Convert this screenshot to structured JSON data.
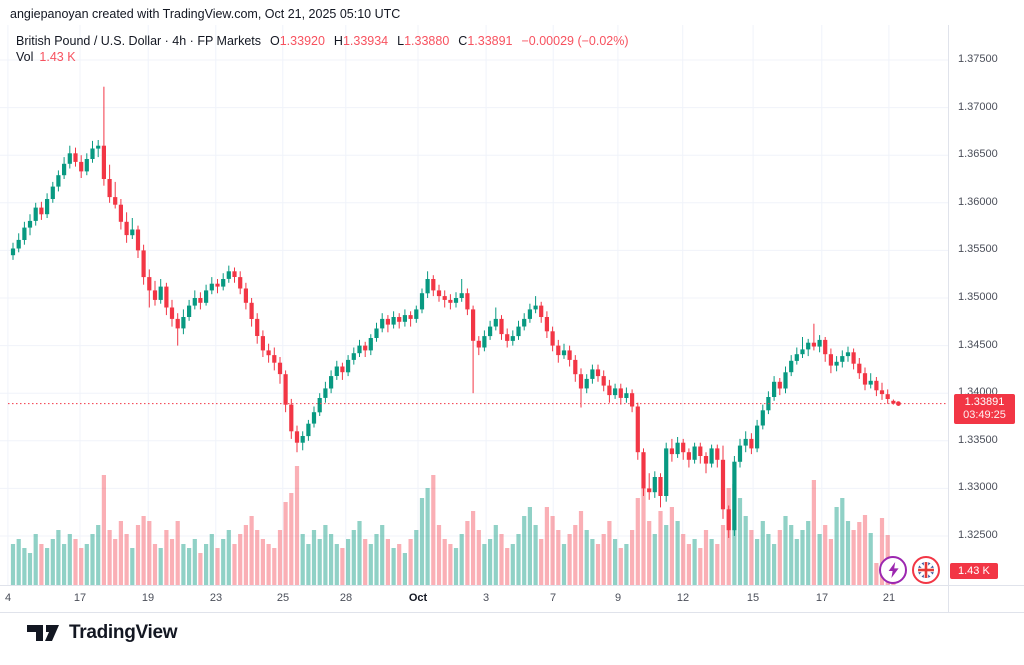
{
  "watermark": "angiepanoyan created with TradingView.com, Oct 21, 2025 05:10 UTC",
  "legend": {
    "symbol_line": "British Pound / U.S. Dollar · 4h · FP Markets",
    "ohlc": [
      {
        "k": "O",
        "v": "1.33920"
      },
      {
        "k": "H",
        "v": "1.33934"
      },
      {
        "k": "L",
        "v": "1.33880"
      },
      {
        "k": "C",
        "v": "1.33891"
      }
    ],
    "change": "−0.00029 (−0.02%)",
    "vol_label": "Vol",
    "vol_value": "1.43 K"
  },
  "price_scale": {
    "current_price": "1.33891",
    "countdown": "03:49:25",
    "current_volume": "1.43 K"
  },
  "footer": {
    "logo_text": "TradingView"
  },
  "buttons": {
    "lightning": "instant-trading",
    "flag": "gbp-currency-flag"
  },
  "colors": {
    "up": "#089981",
    "down": "#f23645",
    "vol_up": "rgba(8,153,129,0.45)",
    "vol_down": "rgba(242,54,69,0.40)",
    "grid": "#f0f3fa",
    "border": "#e0e3eb",
    "axis_text": "#4a4e59",
    "text": "#131722",
    "legend_value_red": "#f7525f",
    "tag_bg": "#f23645",
    "purple": "#9c27b0",
    "flag_blue": "#39539b",
    "flag_red": "#e53935"
  },
  "chart_data": {
    "type": "candlestick",
    "title": "British Pound / U.S. Dollar, 4h, FP Markets",
    "symbol": "GBPUSD",
    "interval": "4h",
    "provider": "FP Markets",
    "last_close": 1.33891,
    "ohlc_last": {
      "open": 1.3392,
      "high": 1.33934,
      "low": 1.3388,
      "close": 1.33891,
      "change": -0.00029,
      "change_pct": -0.02
    },
    "ylim": [
      1.3225,
      1.3775
    ],
    "grid": true,
    "y_ticks": [
      {
        "label": "1.37500",
        "value": 1.375
      },
      {
        "label": "1.37000",
        "value": 1.37
      },
      {
        "label": "1.36500",
        "value": 1.365
      },
      {
        "label": "1.36000",
        "value": 1.36
      },
      {
        "label": "1.35500",
        "value": 1.355
      },
      {
        "label": "1.35000",
        "value": 1.35
      },
      {
        "label": "1.34500",
        "value": 1.345
      },
      {
        "label": "1.34000",
        "value": 1.34
      },
      {
        "label": "1.33500",
        "value": 1.335
      },
      {
        "label": "1.33000",
        "value": 1.33
      },
      {
        "label": "1.32500",
        "value": 1.325
      }
    ],
    "x_ticks": [
      {
        "label": "4",
        "i": -0.9
      },
      {
        "label": "17",
        "i": 11.8
      },
      {
        "label": "19",
        "i": 23.8
      },
      {
        "label": "23",
        "i": 35.7
      },
      {
        "label": "25",
        "i": 47.5
      },
      {
        "label": "28",
        "i": 58.6
      },
      {
        "label": "Oct",
        "i": 71.3,
        "bold": true
      },
      {
        "label": "3",
        "i": 83.3
      },
      {
        "label": "7",
        "i": 95.1
      },
      {
        "label": "9",
        "i": 106.5
      },
      {
        "label": "12",
        "i": 117.9
      },
      {
        "label": "15",
        "i": 130.3
      },
      {
        "label": "17",
        "i": 142.4
      },
      {
        "label": "21",
        "i": 154.2
      }
    ],
    "candles": [
      [
        1.3545,
        1.3558,
        1.354,
        1.3552
      ],
      [
        1.3552,
        1.3568,
        1.3548,
        1.3561
      ],
      [
        1.3561,
        1.358,
        1.3556,
        1.3574
      ],
      [
        1.3574,
        1.3588,
        1.3566,
        1.3581
      ],
      [
        1.3581,
        1.36,
        1.3576,
        1.3595
      ],
      [
        1.3595,
        1.3601,
        1.3582,
        1.3588
      ],
      [
        1.3588,
        1.361,
        1.3584,
        1.3604
      ],
      [
        1.3604,
        1.3622,
        1.36,
        1.3617
      ],
      [
        1.3617,
        1.3634,
        1.3612,
        1.3629
      ],
      [
        1.3629,
        1.3648,
        1.3625,
        1.3641
      ],
      [
        1.3641,
        1.366,
        1.3636,
        1.3652
      ],
      [
        1.3652,
        1.3658,
        1.3638,
        1.3643
      ],
      [
        1.3643,
        1.365,
        1.3626,
        1.3633
      ],
      [
        1.3633,
        1.3652,
        1.3629,
        1.3646
      ],
      [
        1.3646,
        1.3665,
        1.3642,
        1.3657
      ],
      [
        1.3657,
        1.3666,
        1.3648,
        1.366
      ],
      [
        1.366,
        1.3722,
        1.3618,
        1.3625
      ],
      [
        1.3625,
        1.364,
        1.36,
        1.3606
      ],
      [
        1.3606,
        1.3622,
        1.3594,
        1.3598
      ],
      [
        1.3598,
        1.3604,
        1.3572,
        1.358
      ],
      [
        1.358,
        1.359,
        1.3558,
        1.3566
      ],
      [
        1.3566,
        1.3584,
        1.3562,
        1.3572
      ],
      [
        1.3572,
        1.3576,
        1.3542,
        1.355
      ],
      [
        1.355,
        1.3556,
        1.3514,
        1.3522
      ],
      [
        1.3522,
        1.353,
        1.349,
        1.3508
      ],
      [
        1.3508,
        1.3518,
        1.3492,
        1.3498
      ],
      [
        1.3498,
        1.352,
        1.3494,
        1.3512
      ],
      [
        1.3512,
        1.3516,
        1.3482,
        1.349
      ],
      [
        1.349,
        1.3498,
        1.347,
        1.3478
      ],
      [
        1.3478,
        1.3484,
        1.345,
        1.3468
      ],
      [
        1.3468,
        1.3488,
        1.3462,
        1.348
      ],
      [
        1.348,
        1.3498,
        1.3476,
        1.3492
      ],
      [
        1.3492,
        1.3508,
        1.3488,
        1.35
      ],
      [
        1.35,
        1.3506,
        1.3488,
        1.3495
      ],
      [
        1.3495,
        1.3514,
        1.3492,
        1.3508
      ],
      [
        1.3508,
        1.3522,
        1.3504,
        1.3515
      ],
      [
        1.3515,
        1.352,
        1.3505,
        1.3512
      ],
      [
        1.3512,
        1.3526,
        1.3508,
        1.352
      ],
      [
        1.352,
        1.3534,
        1.3516,
        1.3528
      ],
      [
        1.3528,
        1.3532,
        1.3516,
        1.3522
      ],
      [
        1.3522,
        1.3528,
        1.3504,
        1.351
      ],
      [
        1.351,
        1.3516,
        1.3488,
        1.3495
      ],
      [
        1.3495,
        1.35,
        1.347,
        1.3478
      ],
      [
        1.3478,
        1.3484,
        1.3452,
        1.346
      ],
      [
        1.346,
        1.3466,
        1.3438,
        1.3445
      ],
      [
        1.3445,
        1.3452,
        1.3432,
        1.344
      ],
      [
        1.344,
        1.3448,
        1.3424,
        1.3432
      ],
      [
        1.3432,
        1.3438,
        1.341,
        1.342
      ],
      [
        1.342,
        1.3424,
        1.338,
        1.3388
      ],
      [
        1.3388,
        1.3394,
        1.3352,
        1.336
      ],
      [
        1.336,
        1.3366,
        1.3338,
        1.3348
      ],
      [
        1.3348,
        1.336,
        1.334,
        1.3355
      ],
      [
        1.3355,
        1.3372,
        1.335,
        1.3368
      ],
      [
        1.3368,
        1.3386,
        1.3364,
        1.338
      ],
      [
        1.338,
        1.34,
        1.3376,
        1.3395
      ],
      [
        1.3395,
        1.3412,
        1.339,
        1.3405
      ],
      [
        1.3405,
        1.3424,
        1.34,
        1.3418
      ],
      [
        1.3418,
        1.3434,
        1.3414,
        1.3428
      ],
      [
        1.3428,
        1.3432,
        1.3414,
        1.3422
      ],
      [
        1.3422,
        1.344,
        1.3418,
        1.3435
      ],
      [
        1.3435,
        1.3448,
        1.343,
        1.3442
      ],
      [
        1.3442,
        1.3456,
        1.3438,
        1.345
      ],
      [
        1.345,
        1.3454,
        1.3438,
        1.3445
      ],
      [
        1.3445,
        1.3462,
        1.344,
        1.3458
      ],
      [
        1.3458,
        1.3474,
        1.3454,
        1.3468
      ],
      [
        1.3468,
        1.3484,
        1.3464,
        1.3478
      ],
      [
        1.3478,
        1.3482,
        1.3464,
        1.3472
      ],
      [
        1.3472,
        1.3486,
        1.3468,
        1.348
      ],
      [
        1.348,
        1.3484,
        1.3468,
        1.3475
      ],
      [
        1.3475,
        1.3488,
        1.347,
        1.3482
      ],
      [
        1.3482,
        1.3486,
        1.347,
        1.3478
      ],
      [
        1.3478,
        1.3492,
        1.3474,
        1.3488
      ],
      [
        1.3488,
        1.351,
        1.3484,
        1.3505
      ],
      [
        1.3505,
        1.3528,
        1.35,
        1.352
      ],
      [
        1.352,
        1.3524,
        1.3502,
        1.3508
      ],
      [
        1.3508,
        1.3514,
        1.3496,
        1.3502
      ],
      [
        1.3502,
        1.3508,
        1.349,
        1.3498
      ],
      [
        1.3498,
        1.3504,
        1.3488,
        1.3495
      ],
      [
        1.3495,
        1.3506,
        1.349,
        1.35
      ],
      [
        1.35,
        1.352,
        1.3496,
        1.3505
      ],
      [
        1.3505,
        1.351,
        1.3482,
        1.3488
      ],
      [
        1.3488,
        1.3492,
        1.34,
        1.3455
      ],
      [
        1.3455,
        1.346,
        1.344,
        1.3448
      ],
      [
        1.3448,
        1.3466,
        1.3444,
        1.346
      ],
      [
        1.346,
        1.3476,
        1.3456,
        1.347
      ],
      [
        1.347,
        1.349,
        1.3466,
        1.3478
      ],
      [
        1.3478,
        1.3482,
        1.3456,
        1.3462
      ],
      [
        1.3462,
        1.3468,
        1.3448,
        1.3455
      ],
      [
        1.3455,
        1.3466,
        1.345,
        1.346
      ],
      [
        1.346,
        1.3476,
        1.3456,
        1.347
      ],
      [
        1.347,
        1.3484,
        1.3466,
        1.3478
      ],
      [
        1.3478,
        1.3494,
        1.3474,
        1.3488
      ],
      [
        1.3488,
        1.3502,
        1.3484,
        1.3492
      ],
      [
        1.3492,
        1.3496,
        1.3474,
        1.348
      ],
      [
        1.348,
        1.3486,
        1.3458,
        1.3465
      ],
      [
        1.3465,
        1.347,
        1.3444,
        1.345
      ],
      [
        1.345,
        1.3456,
        1.3432,
        1.344
      ],
      [
        1.344,
        1.3452,
        1.3436,
        1.3445
      ],
      [
        1.3445,
        1.345,
        1.3428,
        1.3435
      ],
      [
        1.3435,
        1.344,
        1.3412,
        1.342
      ],
      [
        1.342,
        1.3426,
        1.3385,
        1.3405
      ],
      [
        1.3405,
        1.342,
        1.34,
        1.3415
      ],
      [
        1.3415,
        1.343,
        1.341,
        1.3425
      ],
      [
        1.3425,
        1.343,
        1.3412,
        1.3418
      ],
      [
        1.3418,
        1.3424,
        1.3402,
        1.3408
      ],
      [
        1.3408,
        1.3414,
        1.339,
        1.3398
      ],
      [
        1.3398,
        1.341,
        1.3394,
        1.3405
      ],
      [
        1.3405,
        1.341,
        1.3388,
        1.3395
      ],
      [
        1.3395,
        1.3406,
        1.339,
        1.34
      ],
      [
        1.34,
        1.3404,
        1.338,
        1.3386
      ],
      [
        1.3386,
        1.339,
        1.333,
        1.3338
      ],
      [
        1.3338,
        1.3342,
        1.3292,
        1.33
      ],
      [
        1.33,
        1.3316,
        1.3288,
        1.3296
      ],
      [
        1.3296,
        1.3318,
        1.329,
        1.3312
      ],
      [
        1.3312,
        1.3316,
        1.328,
        1.3292
      ],
      [
        1.3292,
        1.3348,
        1.3286,
        1.3342
      ],
      [
        1.3342,
        1.3352,
        1.3328,
        1.3336
      ],
      [
        1.3336,
        1.3354,
        1.3332,
        1.3348
      ],
      [
        1.3348,
        1.3352,
        1.333,
        1.3338
      ],
      [
        1.3338,
        1.3342,
        1.3322,
        1.333
      ],
      [
        1.333,
        1.3348,
        1.3326,
        1.3344
      ],
      [
        1.3344,
        1.3348,
        1.3326,
        1.3334
      ],
      [
        1.3334,
        1.3338,
        1.3316,
        1.3326
      ],
      [
        1.3326,
        1.3346,
        1.3322,
        1.3342
      ],
      [
        1.3342,
        1.3346,
        1.3322,
        1.333
      ],
      [
        1.333,
        1.3345,
        1.3268,
        1.3278
      ],
      [
        1.3278,
        1.3282,
        1.3248,
        1.3256
      ],
      [
        1.3256,
        1.3334,
        1.325,
        1.3328
      ],
      [
        1.3328,
        1.3352,
        1.3322,
        1.3345
      ],
      [
        1.3345,
        1.336,
        1.3338,
        1.3352
      ],
      [
        1.3352,
        1.3358,
        1.3336,
        1.3342
      ],
      [
        1.3342,
        1.3372,
        1.3338,
        1.3366
      ],
      [
        1.3366,
        1.3388,
        1.3362,
        1.3382
      ],
      [
        1.3382,
        1.3402,
        1.3378,
        1.3396
      ],
      [
        1.3396,
        1.3418,
        1.3392,
        1.3412
      ],
      [
        1.3412,
        1.3416,
        1.3398,
        1.3405
      ],
      [
        1.3405,
        1.3428,
        1.34,
        1.3422
      ],
      [
        1.3422,
        1.344,
        1.3418,
        1.3434
      ],
      [
        1.3434,
        1.3448,
        1.343,
        1.3441
      ],
      [
        1.3441,
        1.3459,
        1.3437,
        1.3446
      ],
      [
        1.3446,
        1.3457,
        1.3439,
        1.3453
      ],
      [
        1.3453,
        1.3473,
        1.3445,
        1.3449
      ],
      [
        1.3449,
        1.3461,
        1.3443,
        1.3456
      ],
      [
        1.3456,
        1.3459,
        1.3433,
        1.3441
      ],
      [
        1.3441,
        1.3447,
        1.3421,
        1.3429
      ],
      [
        1.3429,
        1.3439,
        1.3423,
        1.3433
      ],
      [
        1.3433,
        1.3445,
        1.3427,
        1.3439
      ],
      [
        1.3439,
        1.3449,
        1.3433,
        1.3443
      ],
      [
        1.3443,
        1.3447,
        1.3425,
        1.3431
      ],
      [
        1.3431,
        1.3437,
        1.3415,
        1.3421
      ],
      [
        1.3421,
        1.3427,
        1.3403,
        1.3409
      ],
      [
        1.3409,
        1.3421,
        1.3405,
        1.3413
      ],
      [
        1.3413,
        1.3417,
        1.3397,
        1.3403
      ],
      [
        1.3403,
        1.3411,
        1.3393,
        1.3399
      ],
      [
        1.3399,
        1.3404,
        1.3389,
        1.3394
      ],
      [
        1.3392,
        1.33934,
        1.3388,
        1.33891
      ]
    ],
    "volume": {
      "unit": "K",
      "scale_max_k": 12,
      "last_volume_k": 1.43,
      "values_k": [
        4.1,
        4.6,
        3.7,
        3.2,
        5.1,
        4.1,
        3.7,
        4.6,
        5.5,
        4.1,
        5.1,
        4.6,
        3.7,
        4.1,
        5.1,
        6.0,
        11.0,
        5.5,
        4.6,
        6.4,
        5.1,
        3.7,
        6.0,
        6.9,
        6.4,
        4.1,
        3.7,
        5.5,
        4.6,
        6.4,
        4.1,
        3.7,
        4.6,
        3.2,
        4.1,
        5.1,
        3.7,
        4.6,
        5.5,
        4.1,
        5.1,
        6.0,
        6.9,
        5.5,
        4.6,
        4.1,
        3.7,
        5.5,
        8.3,
        9.2,
        11.9,
        5.1,
        4.1,
        5.5,
        4.6,
        6.0,
        5.1,
        4.1,
        3.7,
        4.6,
        5.5,
        6.4,
        4.6,
        4.1,
        5.1,
        6.0,
        4.6,
        3.7,
        4.1,
        3.2,
        4.6,
        5.5,
        8.7,
        9.7,
        11.0,
        6.0,
        4.6,
        4.1,
        3.7,
        5.1,
        6.4,
        7.4,
        5.5,
        4.1,
        4.6,
        6.0,
        5.1,
        3.7,
        4.1,
        5.1,
        6.9,
        7.8,
        6.0,
        4.6,
        7.8,
        6.9,
        5.5,
        4.1,
        5.1,
        6.0,
        7.4,
        5.5,
        4.6,
        4.1,
        5.1,
        6.4,
        4.6,
        3.7,
        4.1,
        5.5,
        8.7,
        9.7,
        6.4,
        5.1,
        7.4,
        6.0,
        7.8,
        6.4,
        5.1,
        4.1,
        4.6,
        3.7,
        5.5,
        4.6,
        4.1,
        6.0,
        9.7,
        10.1,
        8.7,
        6.9,
        5.5,
        4.6,
        6.4,
        5.1,
        4.1,
        5.5,
        6.9,
        6.0,
        4.6,
        5.5,
        6.4,
        10.5,
        5.1,
        6.0,
        4.6,
        7.8,
        8.7,
        6.4,
        5.5,
        6.3,
        7.0,
        5.2,
        2.2,
        6.7,
        5.0,
        1.43
      ]
    }
  }
}
